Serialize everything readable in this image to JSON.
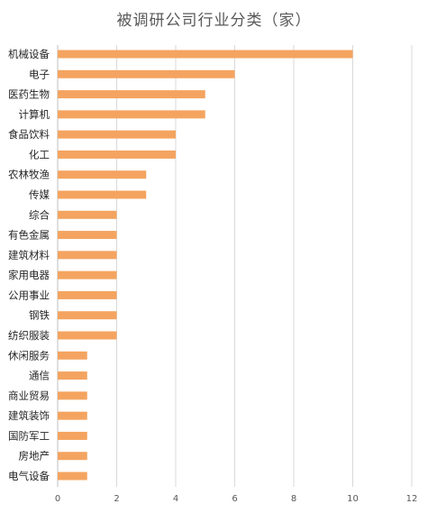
{
  "chart_data": {
    "type": "bar",
    "orientation": "horizontal",
    "title": "被调研公司行业分类（家）",
    "categories": [
      "机械设备",
      "电子",
      "医药生物",
      "计算机",
      "食品饮料",
      "化工",
      "农林牧渔",
      "传媒",
      "综合",
      "有色金属",
      "建筑材料",
      "家用电器",
      "公用事业",
      "钢铁",
      "纺织服装",
      "休闲服务",
      "通信",
      "商业贸易",
      "建筑装饰",
      "国防军工",
      "房地产",
      "电气设备"
    ],
    "values": [
      10,
      6,
      5,
      5,
      4,
      4,
      3,
      3,
      2,
      2,
      2,
      2,
      2,
      2,
      2,
      1,
      1,
      1,
      1,
      1,
      1,
      1
    ],
    "xlim": [
      0,
      12
    ],
    "xticks": [
      0,
      2,
      4,
      6,
      8,
      10,
      12
    ],
    "grid": true,
    "legend": "none",
    "bar_color": "#f4a460"
  }
}
